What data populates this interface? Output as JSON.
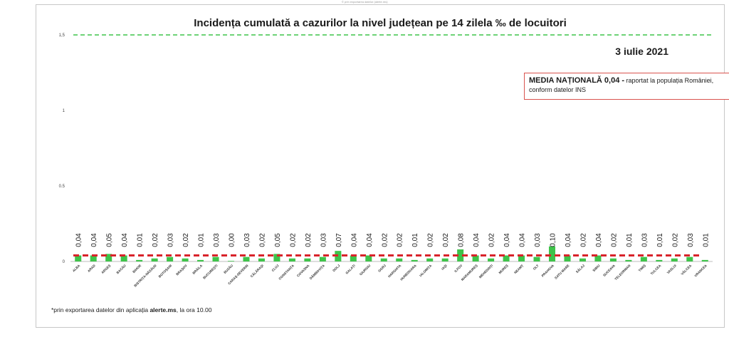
{
  "chart_data": {
    "type": "bar",
    "title": "Incidența cumulată a cazurilor la nivel județean pe 14 zilela ‰ de locuitori",
    "date": "3 iulie 2021",
    "top_note": "© prin exportarea datelor (alerte.ms)",
    "ylim": [
      0,
      1.5
    ],
    "yticks": [
      "0",
      "0.5",
      "1",
      "1,5"
    ],
    "ytick_values": [
      0,
      0.5,
      1,
      1.5
    ],
    "threshold_line": 1.5,
    "national_average": 0.04,
    "categories": [
      "ALBA",
      "ARAD",
      "ARGEȘ",
      "BACĂU",
      "BIHOR",
      "BISTRIȚA-NĂSĂUD",
      "BOTOȘANI",
      "BRAȘOV",
      "BRĂILA",
      "BUCUREȘTI",
      "BUZĂU",
      "CARAȘ-SEVERIN",
      "CĂLĂRAȘI",
      "CLUJ",
      "CONSTANȚA",
      "COVASNA",
      "DÂMBOVIȚA",
      "DOLJ",
      "GALAȚI",
      "GIURGIU",
      "GORJ",
      "HARGHITA",
      "HUNEDOARA",
      "IALOMIȚA",
      "IAȘI",
      "ILFOV",
      "MARAMUREȘ",
      "MEHEDINȚI",
      "MUREȘ",
      "NEAMȚ",
      "OLT",
      "PRAHOVA",
      "SATU MARE",
      "SĂLAJ",
      "SIBIU",
      "SUCEAVA",
      "TELEORMAN",
      "TIMIȘ",
      "TULCEA",
      "VASLUI",
      "VÂLCEA",
      "VRANCEA"
    ],
    "values": [
      0.04,
      0.04,
      0.05,
      0.04,
      0.01,
      0.02,
      0.03,
      0.02,
      0.01,
      0.03,
      0.0,
      0.03,
      0.02,
      0.05,
      0.02,
      0.02,
      0.03,
      0.07,
      0.04,
      0.04,
      0.02,
      0.02,
      0.01,
      0.02,
      0.02,
      0.08,
      0.04,
      0.02,
      0.04,
      0.04,
      0.03,
      0.1,
      0.04,
      0.02,
      0.04,
      0.02,
      0.01,
      0.03,
      0.01,
      0.02,
      0.03,
      0.01
    ],
    "labels": [
      "0,04",
      "0,04",
      "0,05",
      "0,04",
      "0,01",
      "0,02",
      "0,03",
      "0,02",
      "0,01",
      "0,03",
      "0,00",
      "0,03",
      "0,02",
      "0,05",
      "0,02",
      "0,02",
      "0,03",
      "0,07",
      "0,04",
      "0,04",
      "0,02",
      "0,02",
      "0,01",
      "0,02",
      "0,02",
      "0,08",
      "0,04",
      "0,02",
      "0,04",
      "0,04",
      "0,03",
      "0,10",
      "0,04",
      "0,02",
      "0,04",
      "0,02",
      "0,01",
      "0,03",
      "0,01",
      "0,02",
      "0,03",
      "0,01"
    ],
    "colors": {
      "bar": "#3ec34a",
      "threshold": "#3ec34a",
      "average": "#d9232b"
    }
  },
  "legend": {
    "title": "MEDIA NAȚIONALĂ 0,04 -",
    "text1": " raportat la populația României,",
    "text2": "conform datelor INS"
  },
  "footnote": {
    "part1": "*prin exportarea datelor din aplicația ",
    "bold": "alerte.ms",
    "part2": ", la ora 10.00"
  }
}
